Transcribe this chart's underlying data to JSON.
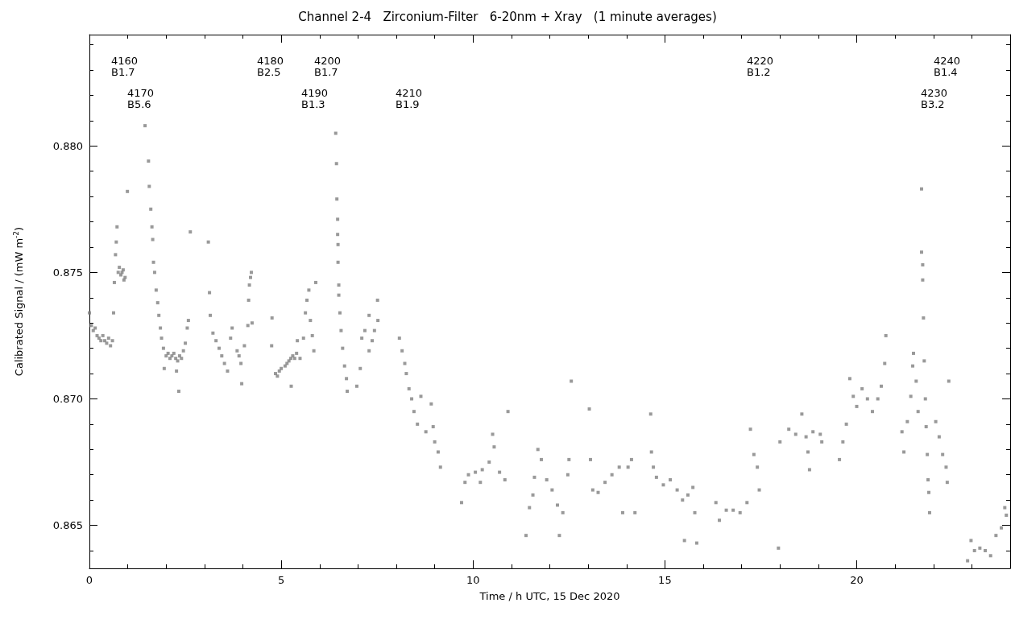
{
  "chart_data": {
    "type": "scatter",
    "title": "Channel 2-4   Zirconium-Filter   6-20nm + Xray   (1 minute averages)",
    "xlabel": "Time / h UTC, 15 Dec 2020",
    "ylabel": "Calibrated Signal / (mW m$^{-2}$)",
    "xlim": [
      0,
      24
    ],
    "xticks": [
      0,
      5,
      10,
      15,
      20
    ],
    "ylim": [
      0.8633,
      0.8844
    ],
    "yticks": [
      0.865,
      {
        "value": 0.87,
        "label": "0.870"
      },
      0.875,
      {
        "value": 0.88,
        "label": "0.880"
      }
    ],
    "marker": "square",
    "grid": false,
    "x": [
      0.0,
      0.05,
      0.1,
      0.15,
      0.2,
      0.25,
      0.3,
      0.35,
      0.4,
      0.45,
      0.5,
      0.55,
      0.6,
      0.63,
      0.65,
      0.68,
      0.7,
      0.72,
      0.75,
      0.78,
      0.82,
      0.85,
      0.88,
      0.9,
      0.93,
      0.99,
      1.45,
      1.54,
      1.56,
      1.6,
      1.63,
      1.65,
      1.67,
      1.7,
      1.74,
      1.78,
      1.81,
      1.85,
      1.88,
      1.93,
      1.95,
      2.0,
      2.05,
      2.1,
      2.15,
      2.2,
      2.25,
      2.3,
      2.27,
      2.33,
      2.35,
      2.4,
      2.45,
      2.5,
      2.55,
      2.58,
      2.63,
      3.1,
      3.13,
      3.15,
      3.22,
      3.3,
      3.38,
      3.45,
      3.52,
      3.6,
      3.68,
      3.72,
      3.85,
      3.9,
      3.95,
      3.97,
      4.04,
      4.13,
      4.15,
      4.17,
      4.2,
      4.22,
      4.24,
      4.75,
      4.76,
      4.85,
      4.9,
      4.95,
      5.0,
      5.1,
      5.15,
      5.2,
      5.25,
      5.26,
      5.3,
      5.35,
      5.4,
      5.42,
      5.49,
      5.58,
      5.63,
      5.67,
      5.72,
      5.76,
      5.81,
      5.85,
      5.9,
      6.42,
      6.44,
      6.45,
      6.47,
      6.47,
      6.48,
      6.48,
      6.5,
      6.5,
      6.53,
      6.56,
      6.6,
      6.65,
      6.7,
      6.72,
      6.97,
      7.06,
      7.1,
      7.18,
      7.29,
      7.29,
      7.37,
      7.43,
      7.51,
      7.52,
      8.08,
      8.15,
      8.22,
      8.26,
      8.33,
      8.4,
      8.46,
      8.55,
      8.64,
      8.77,
      8.91,
      8.96,
      9.0,
      9.09,
      9.15,
      9.7,
      9.79,
      9.88,
      10.06,
      10.19,
      10.24,
      10.42,
      10.51,
      10.55,
      10.69,
      10.83,
      10.91,
      11.38,
      11.47,
      11.56,
      11.6,
      11.69,
      11.78,
      11.92,
      12.06,
      12.2,
      12.25,
      12.34,
      12.47,
      12.5,
      12.56,
      13.03,
      13.06,
      13.12,
      13.26,
      13.44,
      13.62,
      13.81,
      13.9,
      14.04,
      14.13,
      14.22,
      14.63,
      14.65,
      14.7,
      14.78,
      14.96,
      15.14,
      15.32,
      15.46,
      15.51,
      15.6,
      15.73,
      15.78,
      15.83,
      16.33,
      16.42,
      16.6,
      16.78,
      16.96,
      17.14,
      17.23,
      17.32,
      17.41,
      17.46,
      17.96,
      18.0,
      18.23,
      18.41,
      18.57,
      18.68,
      18.73,
      18.77,
      18.86,
      19.05,
      19.09,
      19.55,
      19.64,
      19.73,
      19.82,
      19.91,
      20.0,
      20.14,
      20.28,
      20.41,
      20.55,
      20.64,
      20.73,
      20.76,
      21.18,
      21.23,
      21.32,
      21.41,
      21.46,
      21.48,
      21.55,
      21.6,
      21.69,
      21.69,
      21.72,
      21.72,
      21.74,
      21.76,
      21.79,
      21.81,
      21.84,
      21.86,
      21.88,
      21.9,
      22.06,
      22.15,
      22.24,
      22.33,
      22.36,
      22.4,
      22.89,
      22.98,
      23.07,
      23.21,
      23.35,
      23.49,
      23.63,
      23.77,
      23.86,
      23.9
    ],
    "series": [
      {
        "color": "#808080",
        "values": [
          0.8734,
          0.8729,
          0.8727,
          0.8728,
          0.8725,
          0.8724,
          0.8723,
          0.8725,
          0.8723,
          0.8722,
          0.8724,
          0.8721,
          0.8723,
          0.8734,
          0.8746,
          0.8757,
          0.8762,
          0.8768,
          0.875,
          0.8752,
          0.8749,
          0.875,
          0.8751,
          0.8747,
          0.8748,
          0.8782,
          0.8808,
          0.8794,
          0.8784,
          0.8775,
          0.8768,
          0.8763,
          0.8754,
          0.875,
          0.8743,
          0.8738,
          0.8733,
          0.8728,
          0.8724,
          0.872,
          0.8712,
          0.8717,
          0.8718,
          0.8716,
          0.8717,
          0.8718,
          0.8716,
          0.8715,
          0.8711,
          0.8703,
          0.8717,
          0.8716,
          0.8719,
          0.8722,
          0.8728,
          0.8731,
          0.8766,
          0.8762,
          0.8742,
          0.8733,
          0.8726,
          0.8723,
          0.872,
          0.8717,
          0.8714,
          0.8711,
          0.8724,
          0.8728,
          0.8719,
          0.8717,
          0.8714,
          0.8706,
          0.8721,
          0.8729,
          0.8739,
          0.8745,
          0.8748,
          0.875,
          0.873,
          0.8721,
          0.8732,
          0.871,
          0.8709,
          0.8711,
          0.8712,
          0.8713,
          0.8714,
          0.8715,
          0.8716,
          0.8705,
          0.8717,
          0.8716,
          0.8718,
          0.8723,
          0.8716,
          0.8724,
          0.8734,
          0.8739,
          0.8743,
          0.8731,
          0.8725,
          0.8719,
          0.8746,
          0.8805,
          0.8793,
          0.8779,
          0.8771,
          0.8765,
          0.8761,
          0.8754,
          0.8745,
          0.8741,
          0.8734,
          0.8727,
          0.872,
          0.8713,
          0.8708,
          0.8703,
          0.8705,
          0.8712,
          0.8724,
          0.8727,
          0.8733,
          0.8719,
          0.8723,
          0.8727,
          0.8739,
          0.8731,
          0.8724,
          0.8719,
          0.8714,
          0.871,
          0.8704,
          0.87,
          0.8695,
          0.869,
          0.8701,
          0.8687,
          0.8698,
          0.8689,
          0.8683,
          0.8679,
          0.8673,
          0.8659,
          0.8667,
          0.867,
          0.8671,
          0.8667,
          0.8672,
          0.8675,
          0.8686,
          0.8681,
          0.8671,
          0.8668,
          0.8695,
          0.8646,
          0.8657,
          0.8662,
          0.8669,
          0.868,
          0.8676,
          0.8668,
          0.8664,
          0.8658,
          0.8646,
          0.8655,
          0.867,
          0.8676,
          0.8707,
          0.8696,
          0.8676,
          0.8664,
          0.8663,
          0.8667,
          0.867,
          0.8673,
          0.8655,
          0.8673,
          0.8676,
          0.8655,
          0.8694,
          0.8679,
          0.8673,
          0.8669,
          0.8666,
          0.8668,
          0.8664,
          0.866,
          0.8644,
          0.8662,
          0.8665,
          0.8655,
          0.8643,
          0.8659,
          0.8652,
          0.8656,
          0.8656,
          0.8655,
          0.8659,
          0.8688,
          0.8678,
          0.8673,
          0.8664,
          0.8641,
          0.8683,
          0.8688,
          0.8686,
          0.8694,
          0.8685,
          0.8679,
          0.8672,
          0.8687,
          0.8686,
          0.8683,
          0.8676,
          0.8683,
          0.869,
          0.8708,
          0.8701,
          0.8697,
          0.8704,
          0.87,
          0.8695,
          0.87,
          0.8705,
          0.8714,
          0.8725,
          0.8687,
          0.8679,
          0.8691,
          0.8701,
          0.8713,
          0.8718,
          0.8707,
          0.8695,
          0.8783,
          0.8758,
          0.8753,
          0.8747,
          0.8732,
          0.8715,
          0.87,
          0.8689,
          0.8678,
          0.8668,
          0.8663,
          0.8655,
          0.8691,
          0.8685,
          0.8678,
          0.8673,
          0.8667,
          0.8707,
          0.8636,
          0.8644,
          0.864,
          0.8641,
          0.864,
          0.8638,
          0.8646,
          0.8649,
          0.8657,
          0.8654
        ]
      }
    ],
    "annotations": [
      "4160\nB1.7",
      "4170\nB5.6",
      "4180\nB2.5",
      "4190\nB1.3",
      "4200\nB1.7",
      "4210\nB1.9",
      "4220\nB1.2",
      "4230\nB3.2",
      "4240\nB1.4"
    ]
  }
}
